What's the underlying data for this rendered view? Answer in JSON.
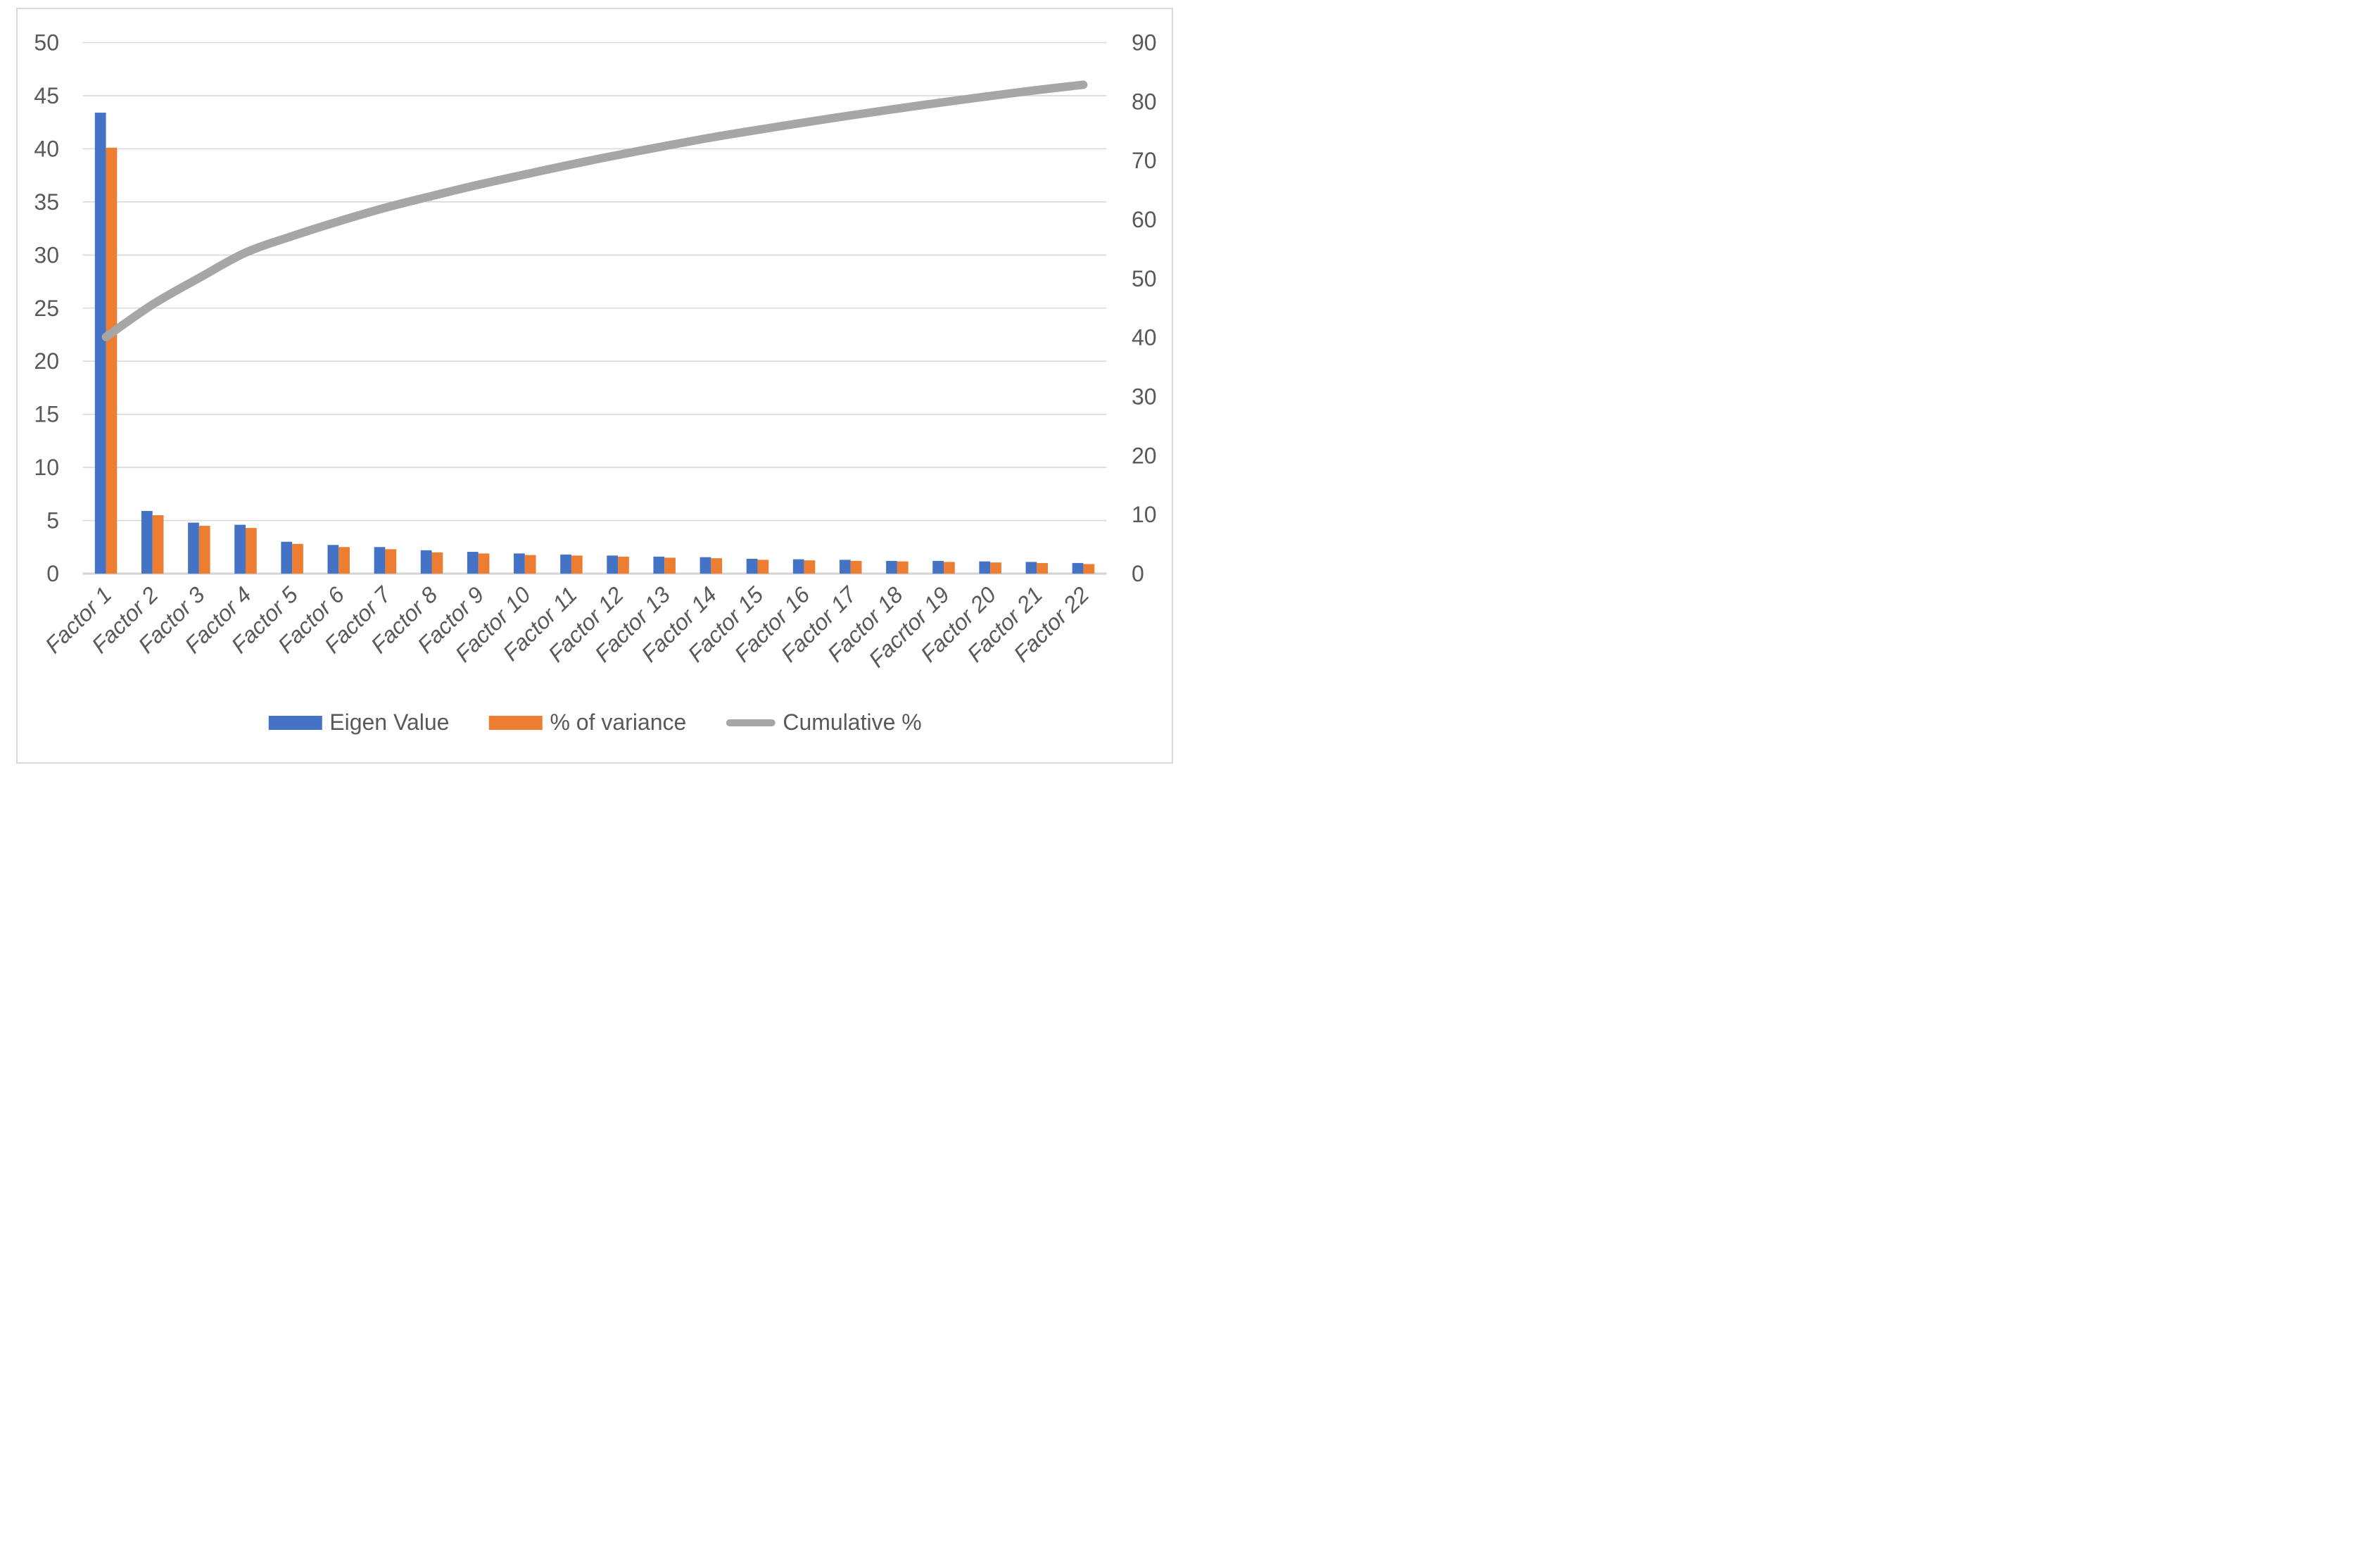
{
  "chart_data": {
    "type": "bar",
    "subtype": "pareto-combo-bar-line",
    "title": "",
    "categories": [
      "Factor 1",
      "Factor 2",
      "Factor 3",
      "Factor 4",
      "Factor 5",
      "Factor 6",
      "Factor 7",
      "Factor 8",
      "Factor 9",
      "Factor 10",
      "Factor 11",
      "Factor 12",
      "Factor 13",
      "Factor 14",
      "Factor 15",
      "Factor 16",
      "Factor 17",
      "Factor 18",
      "Facrtor 19",
      "Factor 20",
      "Factor 21",
      "Factor 22"
    ],
    "series": [
      {
        "name": "Eigen Value",
        "type": "bar",
        "axis": "left",
        "color": "#4472C4",
        "values": [
          43.4,
          5.9,
          4.8,
          4.6,
          3.0,
          2.7,
          2.5,
          2.2,
          2.05,
          1.9,
          1.8,
          1.7,
          1.6,
          1.55,
          1.4,
          1.35,
          1.3,
          1.2,
          1.2,
          1.15,
          1.1,
          1.0
        ]
      },
      {
        "name": "% of variance",
        "type": "bar",
        "axis": "left",
        "color": "#ED7D31",
        "values": [
          40.1,
          5.5,
          4.5,
          4.3,
          2.8,
          2.5,
          2.3,
          2.0,
          1.9,
          1.75,
          1.7,
          1.6,
          1.5,
          1.45,
          1.3,
          1.25,
          1.2,
          1.15,
          1.1,
          1.05,
          1.0,
          0.9
        ]
      },
      {
        "name": "Cumulative %",
        "type": "line",
        "axis": "right",
        "color": "#A6A6A6",
        "values": [
          40.1,
          45.6,
          50.1,
          54.4,
          57.2,
          59.7,
          62.0,
          64.0,
          65.9,
          67.65,
          69.35,
          70.95,
          72.45,
          73.9,
          75.2,
          76.45,
          77.65,
          78.8,
          79.9,
          80.95,
          81.95,
          82.85
        ]
      }
    ],
    "left_axis": {
      "min": 0,
      "max": 50,
      "step": 5,
      "ticks": [
        "0",
        "5",
        "10",
        "15",
        "20",
        "25",
        "30",
        "35",
        "40",
        "45",
        "50"
      ]
    },
    "right_axis": {
      "min": 0,
      "max": 90,
      "step": 10,
      "ticks": [
        "0",
        "10",
        "20",
        "30",
        "40",
        "50",
        "60",
        "70",
        "80",
        "90"
      ]
    },
    "legend_position": "bottom",
    "grid": true,
    "xlabel": "",
    "ylabel": ""
  },
  "styles": {
    "text_color": "#595959",
    "grid_color": "#D9D9D9",
    "axis_line_color": "#D6D6D6",
    "border_color": "#D9D9D9",
    "background": "#FFFFFF"
  }
}
